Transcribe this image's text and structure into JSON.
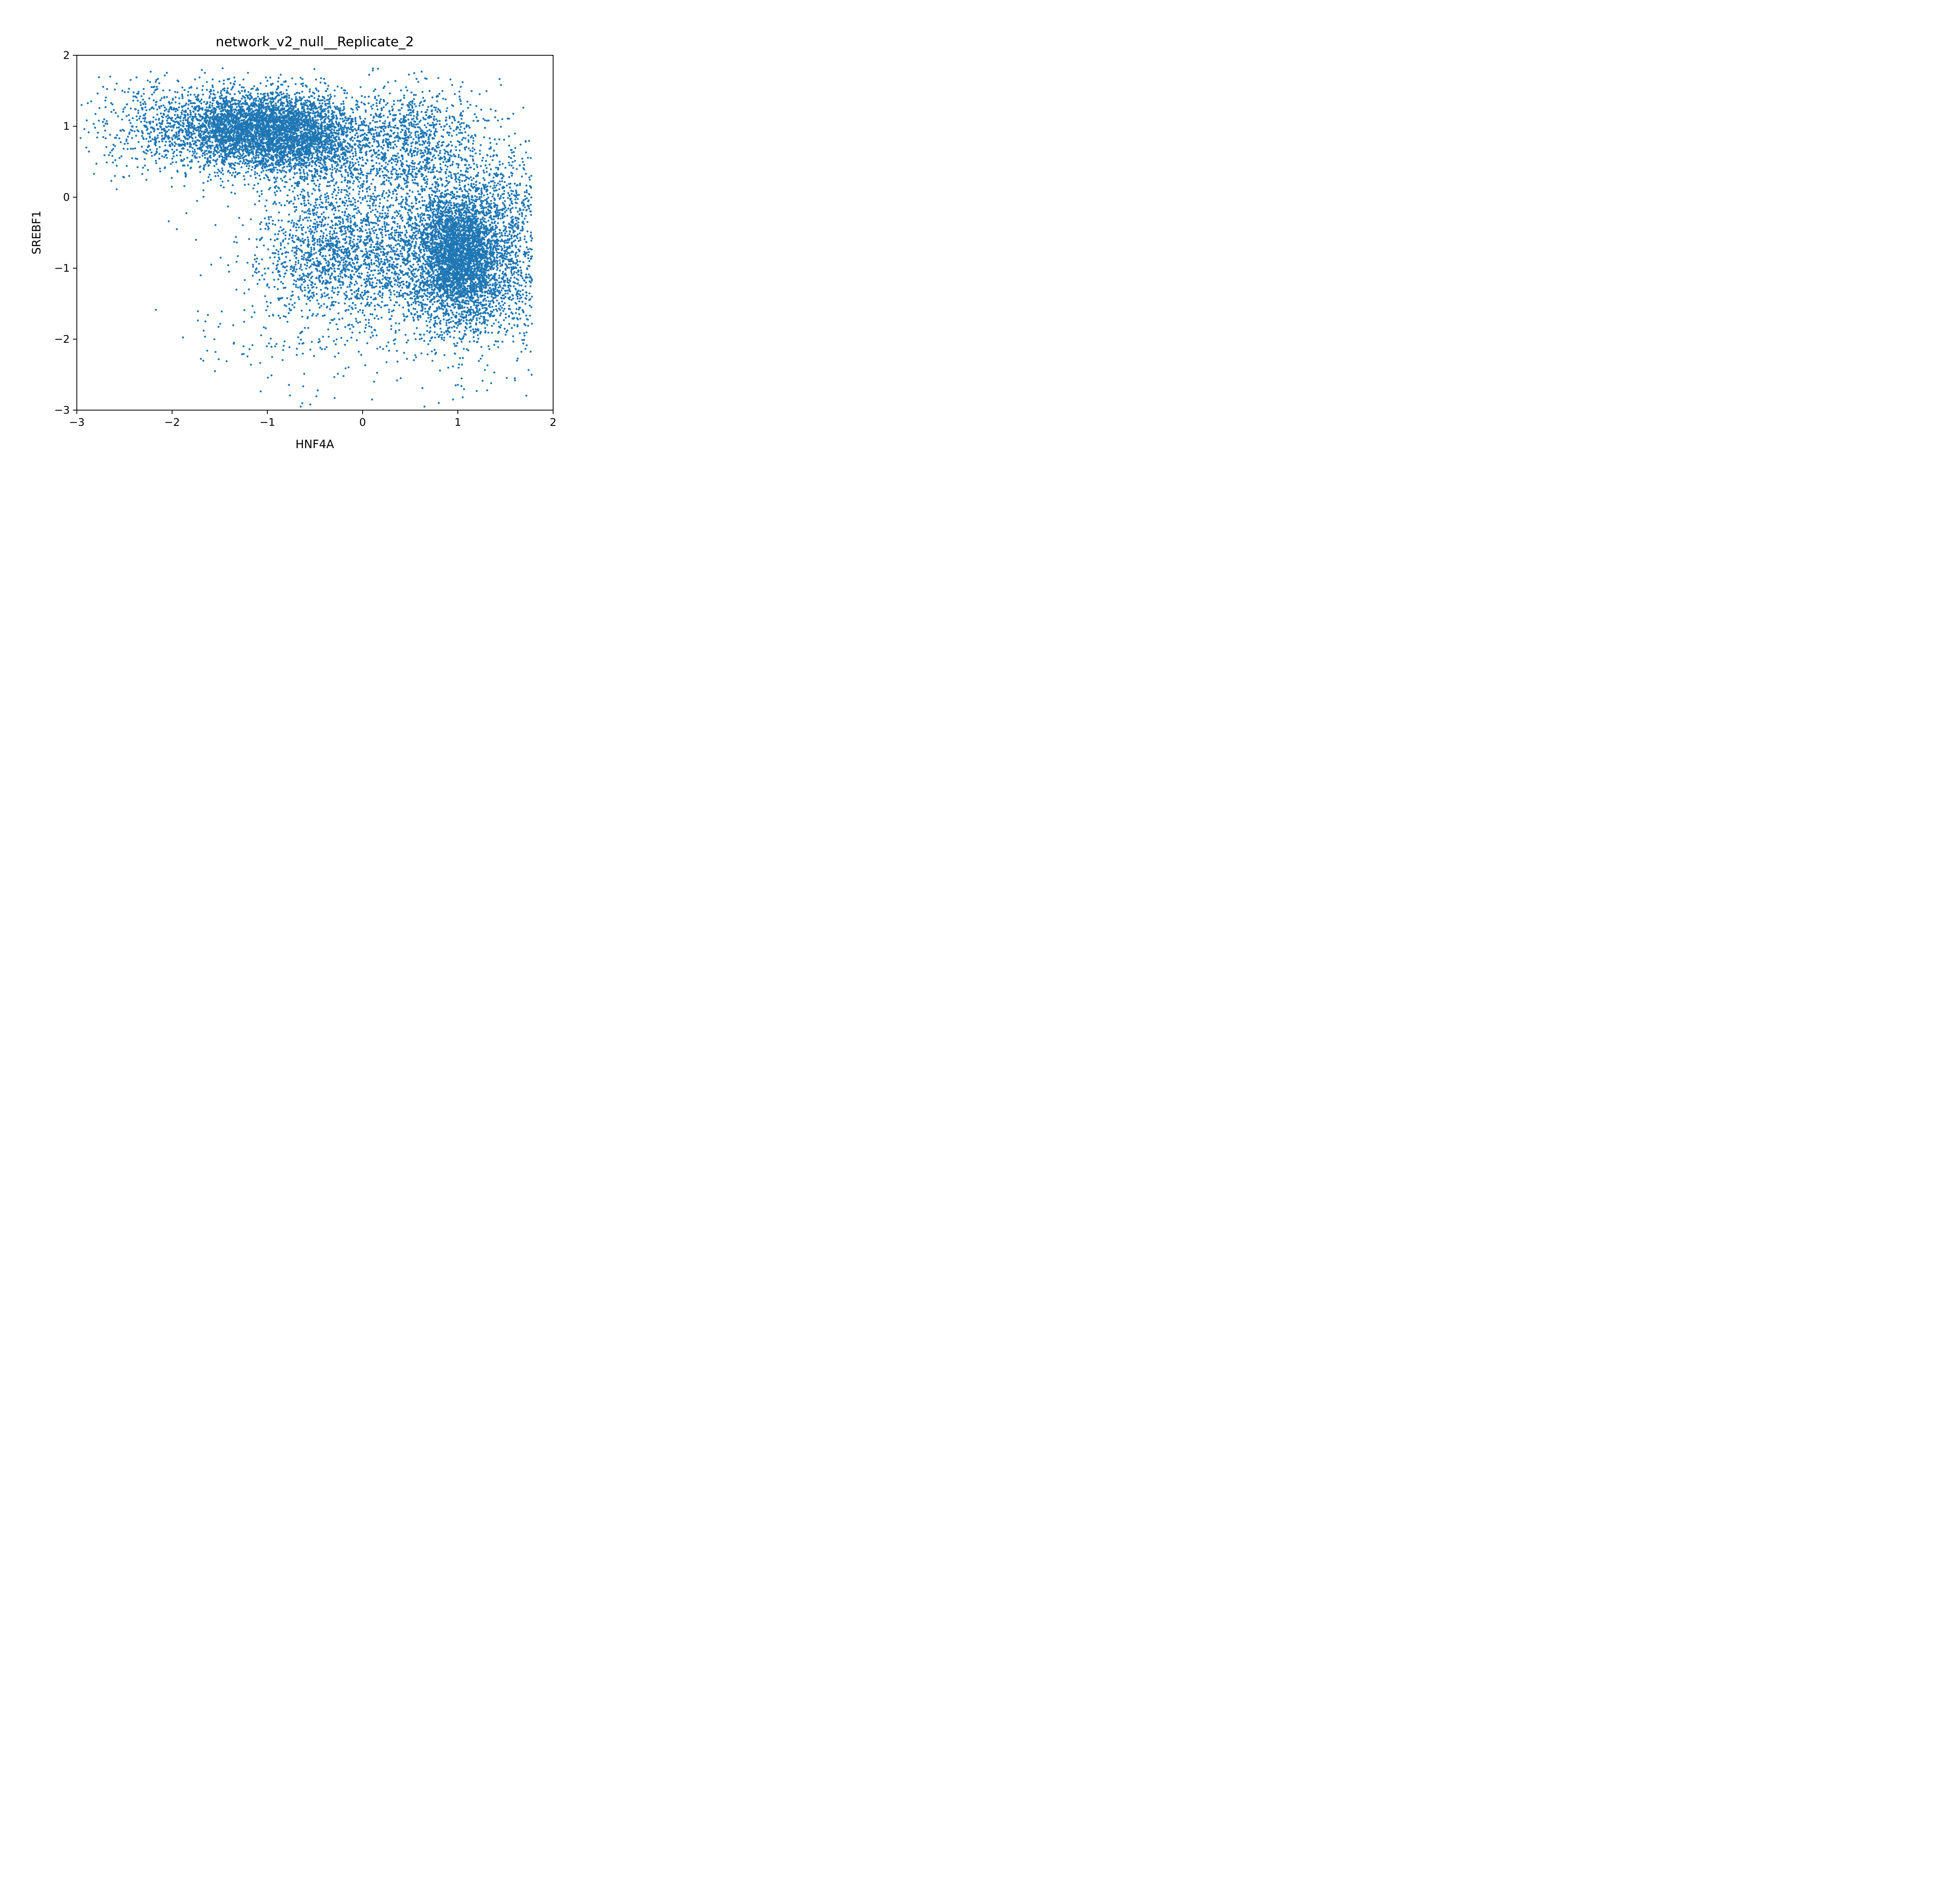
{
  "chart_data": {
    "type": "scatter",
    "title": "network_v2_null__Replicate_2",
    "xlabel": "HNF4A",
    "ylabel": "SREBF1",
    "xlim": [
      -3,
      2
    ],
    "ylim": [
      -3,
      2
    ],
    "xticks": [
      -3,
      -2,
      -1,
      0,
      1,
      2
    ],
    "yticks": [
      -3,
      -2,
      -1,
      0,
      1,
      2
    ],
    "xtick_labels": [
      "−3",
      "−2",
      "−1",
      "0",
      "1",
      "2"
    ],
    "ytick_labels": [
      "−3",
      "−2",
      "−1",
      "0",
      "1",
      "2"
    ],
    "grid": false,
    "marker_color": "#1f77b4",
    "clusters": [
      {
        "center": [
          -1.2,
          0.95
        ],
        "spread": [
          0.42,
          0.28
        ],
        "count": 3600
      },
      {
        "center": [
          -0.55,
          0.85
        ],
        "spread": [
          0.3,
          0.3
        ],
        "count": 1500
      },
      {
        "center": [
          0.5,
          0.85
        ],
        "spread": [
          0.35,
          0.35
        ],
        "count": 900
      },
      {
        "center": [
          1.0,
          -0.85
        ],
        "spread": [
          0.22,
          0.45
        ],
        "count": 2600
      },
      {
        "center": [
          1.15,
          -0.7
        ],
        "spread": [
          0.38,
          0.7
        ],
        "count": 2400
      },
      {
        "center": [
          -0.35,
          -0.8
        ],
        "spread": [
          0.38,
          0.45
        ],
        "count": 1100
      },
      {
        "center": [
          0.3,
          -0.9
        ],
        "spread": [
          0.4,
          0.55
        ],
        "count": 900
      },
      {
        "center": [
          -2.2,
          1.0
        ],
        "spread": [
          0.35,
          0.35
        ],
        "count": 350
      },
      {
        "center": [
          0.0,
          0.2
        ],
        "spread": [
          0.6,
          0.5
        ],
        "count": 500
      },
      {
        "center": [
          -0.7,
          -1.8
        ],
        "spread": [
          0.5,
          0.45
        ],
        "count": 150
      }
    ],
    "outliers": [
      [
        -2.95,
        1.3
      ],
      [
        -2.92,
        0.96
      ],
      [
        -2.9,
        0.7
      ],
      [
        -2.85,
        1.35
      ],
      [
        -2.82,
        0.33
      ],
      [
        -2.65,
        1.7
      ],
      [
        -2.6,
        0.3
      ],
      [
        -2.45,
        0.3
      ],
      [
        -1.95,
        -0.45
      ],
      [
        -1.75,
        -0.6
      ],
      [
        -1.65,
        -1.75
      ],
      [
        -1.55,
        -2.45
      ],
      [
        -1.35,
        -2.05
      ],
      [
        -1.25,
        -2.1
      ],
      [
        -0.95,
        -2.25
      ],
      [
        -0.65,
        -2.95
      ],
      [
        -0.55,
        -2.92
      ],
      [
        0.1,
        -2.85
      ],
      [
        0.12,
        -2.6
      ],
      [
        0.65,
        -2.95
      ],
      [
        0.8,
        -2.9
      ],
      [
        0.95,
        -2.85
      ],
      [
        1.05,
        -2.82
      ],
      [
        1.6,
        -2.58
      ],
      [
        1.75,
        0.28
      ],
      [
        1.78,
        -0.58
      ],
      [
        1.75,
        -1.45
      ],
      [
        1.7,
        -1.95
      ],
      [
        1.05,
        1.62
      ],
      [
        0.62,
        1.77
      ],
      [
        -0.2,
        -2.52
      ],
      [
        0.4,
        -2.55
      ],
      [
        1.35,
        -2.62
      ],
      [
        -1.7,
        -1.1
      ],
      [
        1.65,
        0.45
      ]
    ]
  }
}
